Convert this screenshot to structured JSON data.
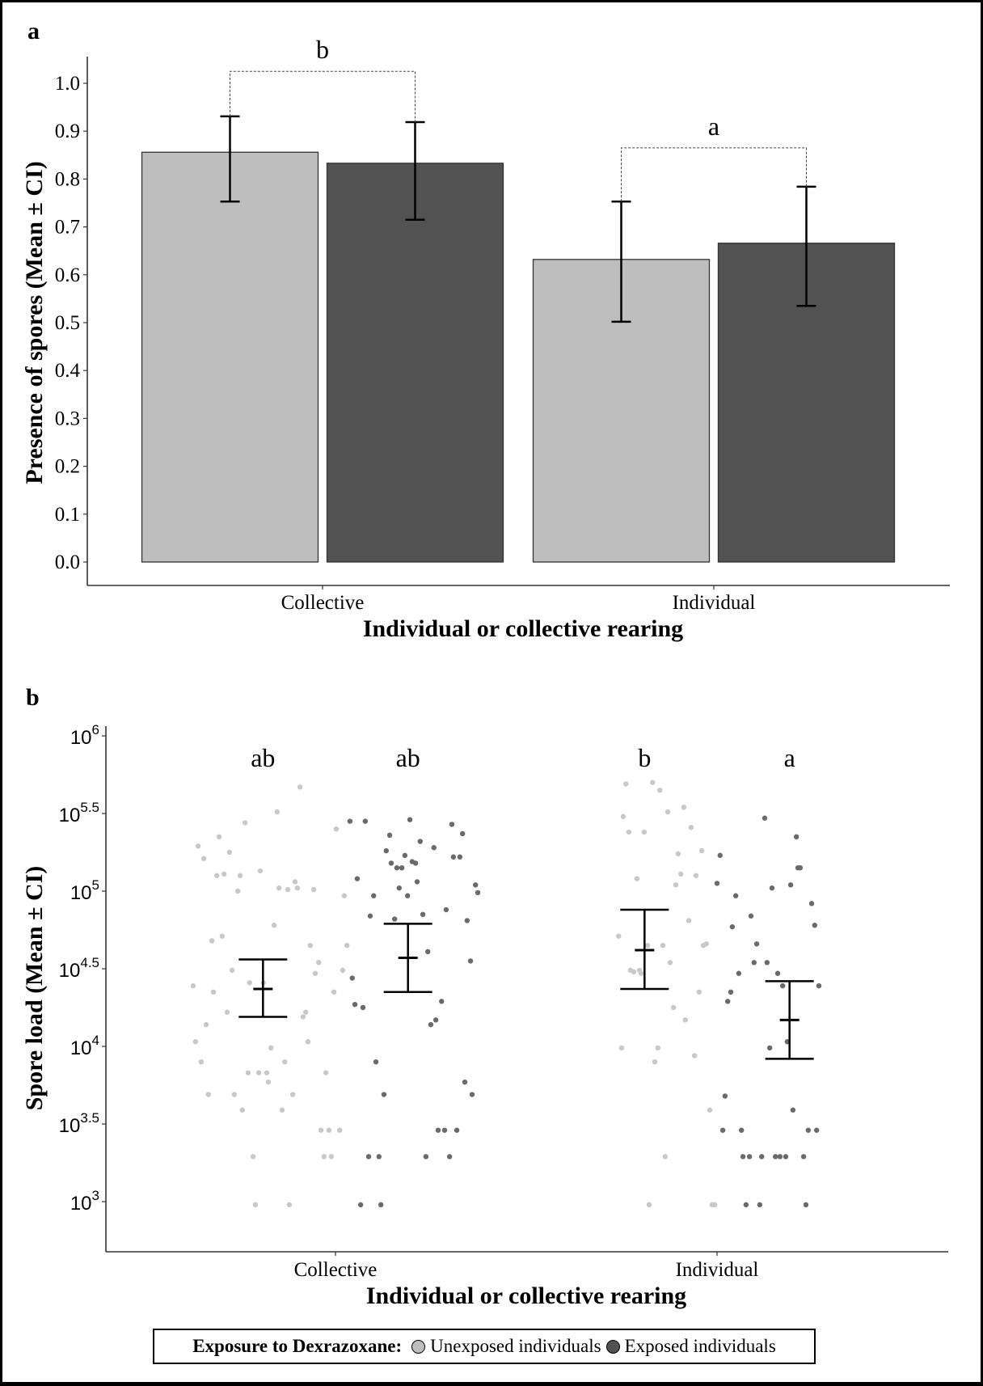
{
  "colors": {
    "unexposed": "#bebebe",
    "exposed": "#525252",
    "unexposed_point": "#c8c8c8",
    "exposed_point": "#6a6a6a",
    "axis": "#333333"
  },
  "legend": {
    "title": "Exposure to Dexrazoxane:",
    "items": [
      {
        "label": "Unexposed individuals",
        "key": "unexposed"
      },
      {
        "label": "Exposed individuals",
        "key": "exposed"
      }
    ]
  },
  "chart_data": [
    {
      "panel_label": "a",
      "type": "bar",
      "title": "",
      "xlabel": "Individual or collective rearing",
      "ylabel": "Presence of spores (Mean ± CI)",
      "categories": [
        "Collective",
        "Individual"
      ],
      "ylim": [
        -0.05,
        1.05
      ],
      "yticks": [
        0.0,
        0.1,
        0.2,
        0.3,
        0.4,
        0.5,
        0.6,
        0.7,
        0.8,
        0.9,
        1.0
      ],
      "ytick_labels": [
        "0.0",
        "0.1",
        "0.2",
        "0.3",
        "0.4",
        "0.5",
        "0.6",
        "0.7",
        "0.8",
        "0.9",
        "1.0"
      ],
      "grid": false,
      "series": [
        {
          "name": "Unexposed individuals",
          "key": "unexposed",
          "values": [
            0.856,
            0.632
          ],
          "ci_lower": [
            0.753,
            0.502
          ],
          "ci_upper": [
            0.931,
            0.753
          ]
        },
        {
          "name": "Exposed individuals",
          "key": "exposed",
          "values": [
            0.833,
            0.666
          ],
          "ci_lower": [
            0.715,
            0.535
          ],
          "ci_upper": [
            0.919,
            0.784
          ]
        }
      ],
      "annotations": [
        {
          "text": "b",
          "category": "Collective",
          "bracket_y": 1.025,
          "text_y": 1.07
        },
        {
          "text": "a",
          "category": "Individual",
          "bracket_y": 0.865,
          "text_y": 0.9
        }
      ]
    },
    {
      "panel_label": "b",
      "type": "scatter",
      "title": "",
      "xlabel": "Individual or collective rearing",
      "ylabel": "Spore load (Mean ± CI)",
      "y_scale": "log10",
      "categories": [
        "Collective",
        "Individual"
      ],
      "ylim_log10": [
        2.68,
        6.06
      ],
      "yticks_log10": [
        3,
        3.5,
        4,
        4.5,
        5,
        5.5,
        6
      ],
      "ytick_labels": [
        {
          "base": "10",
          "exp": "3"
        },
        {
          "base": "10",
          "exp": "3.5"
        },
        {
          "base": "10",
          "exp": "4"
        },
        {
          "base": "10",
          "exp": "4.5"
        },
        {
          "base": "10",
          "exp": "5"
        },
        {
          "base": "10",
          "exp": "5.5"
        },
        {
          "base": "10",
          "exp": "6"
        }
      ],
      "grid": false,
      "dodge": 0.19,
      "groups": [
        {
          "category": "Collective",
          "key": "unexposed",
          "letter": "ab",
          "mean_log10": 4.37,
          "ci_lower_log10": 4.19,
          "ci_upper_log10": 4.56,
          "points": [
            [
              -0.093,
              5.67
            ],
            [
              -0.153,
              5.51
            ],
            [
              -0.237,
              5.44
            ],
            [
              -0.305,
              5.35
            ],
            [
              -0.36,
              5.29
            ],
            [
              -0.345,
              5.21
            ],
            [
              -0.278,
              5.25
            ],
            [
              -0.311,
              5.1
            ],
            [
              -0.292,
              5.11
            ],
            [
              -0.25,
              5.1
            ],
            [
              -0.197,
              5.13
            ],
            [
              -0.256,
              5.0
            ],
            [
              -0.148,
              5.02
            ],
            [
              -0.125,
              5.01
            ],
            [
              -0.1,
              5.02
            ],
            [
              -0.106,
              5.06
            ],
            [
              -0.057,
              5.01
            ],
            [
              0.002,
              5.4
            ],
            [
              0.023,
              4.97
            ],
            [
              -0.161,
              4.78
            ],
            [
              -0.324,
              4.68
            ],
            [
              -0.297,
              4.71
            ],
            [
              -0.066,
              4.65
            ],
            [
              0.03,
              4.65
            ],
            [
              -0.044,
              4.54
            ],
            [
              -0.053,
              4.47
            ],
            [
              0.019,
              4.49
            ],
            [
              -0.271,
              4.49
            ],
            [
              -0.225,
              4.41
            ],
            [
              -0.189,
              4.41
            ],
            [
              -0.373,
              4.39
            ],
            [
              -0.32,
              4.35
            ],
            [
              -0.004,
              4.35
            ],
            [
              -0.284,
              4.22
            ],
            [
              -0.339,
              4.14
            ],
            [
              -0.078,
              4.22
            ],
            [
              -0.085,
              4.19
            ],
            [
              -0.367,
              4.03
            ],
            [
              -0.072,
              4.03
            ],
            [
              -0.169,
              3.99
            ],
            [
              -0.352,
              3.9
            ],
            [
              -0.133,
              3.9
            ],
            [
              -0.229,
              3.83
            ],
            [
              -0.201,
              3.83
            ],
            [
              -0.18,
              3.83
            ],
            [
              -0.025,
              3.83
            ],
            [
              -0.176,
              3.77
            ],
            [
              -0.333,
              3.69
            ],
            [
              -0.265,
              3.69
            ],
            [
              -0.112,
              3.69
            ],
            [
              -0.244,
              3.59
            ],
            [
              -0.14,
              3.59
            ],
            [
              -0.038,
              3.46
            ],
            [
              -0.017,
              3.46
            ],
            [
              0.011,
              3.46
            ],
            [
              -0.216,
              3.29
            ],
            [
              -0.03,
              3.29
            ],
            [
              -0.011,
              3.29
            ],
            [
              -0.21,
              2.98
            ],
            [
              -0.121,
              2.98
            ]
          ]
        },
        {
          "category": "Collective",
          "key": "exposed",
          "letter": "ab",
          "mean_log10": 4.57,
          "ci_lower_log10": 4.35,
          "ci_upper_log10": 4.79,
          "points": [
            [
              0.038,
              5.45
            ],
            [
              0.078,
              5.45
            ],
            [
              0.195,
              5.46
            ],
            [
              0.305,
              5.43
            ],
            [
              0.333,
              5.37
            ],
            [
              0.142,
              5.36
            ],
            [
              0.222,
              5.32
            ],
            [
              0.258,
              5.28
            ],
            [
              0.133,
              5.26
            ],
            [
              0.182,
              5.23
            ],
            [
              0.201,
              5.19
            ],
            [
              0.21,
              5.18
            ],
            [
              0.146,
              5.18
            ],
            [
              0.161,
              5.15
            ],
            [
              0.174,
              5.15
            ],
            [
              0.309,
              5.22
            ],
            [
              0.326,
              5.22
            ],
            [
              0.057,
              5.08
            ],
            [
              0.214,
              5.06
            ],
            [
              0.167,
              5.02
            ],
            [
              0.189,
              4.97
            ],
            [
              0.1,
              4.97
            ],
            [
              0.367,
              5.04
            ],
            [
              0.373,
              4.99
            ],
            [
              0.091,
              4.84
            ],
            [
              0.155,
              4.82
            ],
            [
              0.229,
              4.85
            ],
            [
              0.29,
              4.88
            ],
            [
              0.345,
              4.81
            ],
            [
              0.242,
              4.61
            ],
            [
              0.354,
              4.55
            ],
            [
              0.044,
              4.44
            ],
            [
              0.051,
              4.27
            ],
            [
              0.072,
              4.25
            ],
            [
              0.278,
              4.29
            ],
            [
              0.263,
              4.17
            ],
            [
              0.25,
              4.14
            ],
            [
              0.106,
              3.9
            ],
            [
              0.127,
              3.69
            ],
            [
              0.339,
              3.77
            ],
            [
              0.358,
              3.69
            ],
            [
              0.269,
              3.46
            ],
            [
              0.286,
              3.46
            ],
            [
              0.318,
              3.46
            ],
            [
              0.087,
              3.29
            ],
            [
              0.114,
              3.29
            ],
            [
              0.237,
              3.29
            ],
            [
              0.299,
              3.29
            ],
            [
              0.066,
              2.98
            ],
            [
              0.119,
              2.98
            ]
          ]
        },
        {
          "category": "Individual",
          "key": "unexposed",
          "letter": "b",
          "mean_log10": 4.62,
          "ci_lower_log10": 4.37,
          "ci_upper_log10": 4.88,
          "points": [
            [
              -0.239,
              5.69
            ],
            [
              -0.169,
              5.7
            ],
            [
              -0.15,
              5.65
            ],
            [
              -0.246,
              5.48
            ],
            [
              -0.231,
              5.38
            ],
            [
              -0.191,
              5.38
            ],
            [
              -0.129,
              5.51
            ],
            [
              -0.087,
              5.54
            ],
            [
              -0.068,
              5.41
            ],
            [
              -0.102,
              5.24
            ],
            [
              -0.04,
              5.26
            ],
            [
              -0.21,
              5.08
            ],
            [
              -0.095,
              5.11
            ],
            [
              -0.055,
              5.1
            ],
            [
              -0.108,
              5.04
            ],
            [
              -0.074,
              4.81
            ],
            [
              -0.258,
              4.71
            ],
            [
              -0.142,
              4.65
            ],
            [
              -0.182,
              4.65
            ],
            [
              -0.036,
              4.65
            ],
            [
              -0.028,
              4.66
            ],
            [
              -0.123,
              4.54
            ],
            [
              -0.227,
              4.49
            ],
            [
              -0.218,
              4.48
            ],
            [
              -0.203,
              4.49
            ],
            [
              -0.199,
              4.47
            ],
            [
              -0.047,
              4.35
            ],
            [
              -0.114,
              4.25
            ],
            [
              -0.083,
              4.17
            ],
            [
              -0.25,
              3.99
            ],
            [
              -0.155,
              3.99
            ],
            [
              -0.059,
              3.94
            ],
            [
              -0.163,
              3.9
            ],
            [
              -0.019,
              3.59
            ],
            [
              -0.136,
              3.29
            ],
            [
              -0.178,
              2.98
            ],
            [
              -0.013,
              2.98
            ],
            [
              -0.006,
              2.98
            ]
          ]
        },
        {
          "category": "Individual",
          "key": "exposed",
          "letter": "a",
          "mean_log10": 4.17,
          "ci_lower_log10": 3.92,
          "ci_upper_log10": 4.42,
          "points": [
            [
              0.125,
              5.47
            ],
            [
              0.208,
              5.35
            ],
            [
              0.212,
              5.15
            ],
            [
              0.218,
              5.15
            ],
            [
              0.008,
              5.23
            ],
            [
              0.0,
              5.05
            ],
            [
              0.144,
              5.02
            ],
            [
              0.193,
              5.04
            ],
            [
              0.049,
              4.97
            ],
            [
              0.248,
              4.92
            ],
            [
              0.089,
              4.84
            ],
            [
              0.04,
              4.77
            ],
            [
              0.256,
              4.78
            ],
            [
              0.104,
              4.66
            ],
            [
              0.097,
              4.54
            ],
            [
              0.131,
              4.54
            ],
            [
              0.057,
              4.47
            ],
            [
              0.159,
              4.47
            ],
            [
              0.172,
              4.39
            ],
            [
              0.267,
              4.39
            ],
            [
              0.036,
              4.35
            ],
            [
              0.028,
              4.29
            ],
            [
              0.184,
              4.03
            ],
            [
              0.138,
              3.99
            ],
            [
              0.021,
              3.68
            ],
            [
              0.199,
              3.59
            ],
            [
              0.015,
              3.46
            ],
            [
              0.064,
              3.46
            ],
            [
              0.239,
              3.46
            ],
            [
              0.261,
              3.46
            ],
            [
              0.068,
              3.29
            ],
            [
              0.085,
              3.29
            ],
            [
              0.117,
              3.29
            ],
            [
              0.153,
              3.29
            ],
            [
              0.165,
              3.29
            ],
            [
              0.18,
              3.29
            ],
            [
              0.227,
              3.29
            ],
            [
              0.076,
              2.98
            ],
            [
              0.112,
              2.98
            ],
            [
              0.233,
              2.98
            ]
          ]
        }
      ]
    }
  ]
}
